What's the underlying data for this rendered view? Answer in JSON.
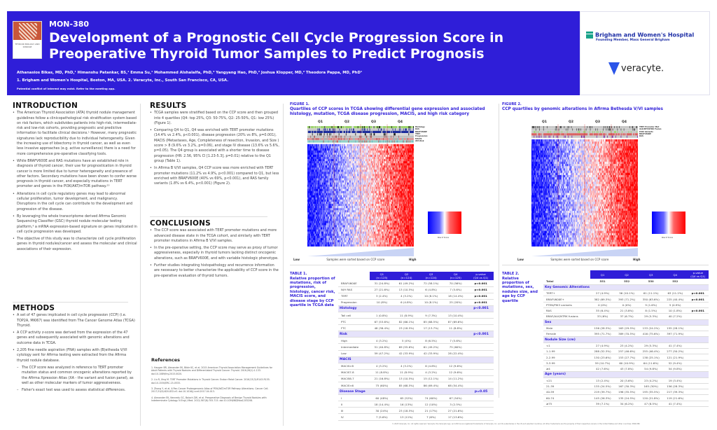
{
  "header": {
    "code": "MON-380",
    "title": "Development of a Prognostic Cell Cycle Progression Score in Preoperative Thyroid Tumor Samples to Predict Prognosis",
    "authors": "Athanasios Bikas, MD, PhD,¹ Himanshu Patankar, BS,¹ Emma Su,¹ Mohammed Alshalalfa, PhD,² Yangyang Hao, PhD,² Joshua Klopper, MD,² Theodora Pappa, MD, PhD¹",
    "affiliations": "1. Brigham and Women's Hospital, Boston, MA, USA. 2. Veracyte, Inc., South San Francisco, CA, USA.",
    "coi": "Potential conflict of interest may exist. Refer to the meeting app.",
    "cover_text": "THYROID BIOLOGY AND DISEASE",
    "brand_color": "#2f1ed8"
  },
  "logos": {
    "bwh_name": "Brigham and Women's Hospital",
    "bwh_sub": "Founding Member, Mass General Brigham",
    "veracyte": "veracyte."
  },
  "intro": {
    "heading": "INTRODUCTION",
    "items": [
      "The American Thyroid Association (ATA) thyroid nodule management guidelines follow a clinicopathological risk stratification system based on risk factors, which subdivides patients into high-risk, intermediate-risk and low-risk cohorts, providing prognostic and predictive information to facilitate clinical decisions.¹ However, many prognostic signatures lack reproducibility due to individual heterogeneity. Given the increasing use of lobectomy in thyroid cancer, as well as even less invasive approaches (e.g. active surveillance) there is a need for more comprehensive pre-operative classifying tools.",
      "While BRAFV600E and RAS mutations have an established role in diagnosis of thyroid cancer, their use for prognostication in thyroid cancer is more limited due to tumor heterogeneity and presence of other factors. Secondary mutations have been shown to confer worse prognosis in thyroid cancer, and especially mutations in TERT promoter and genes in the PI3K/AKT/mTOR pathway.²³",
      "Alterations in cell cycle regulatory genes may lead to abnormal cellular proliferation, tumor development, and malignancy. Disruptions in the cell cycle can contribute to the development and progression of the disease.",
      "By leveraging the whole transcriptome derived Afirma Genomic Sequencing Classifier (GSC) thyroid nodule molecular testing platform,⁴ a mRNA expression-based signature on genes implicated in cell cycle progression was developed.",
      "The objective of this study was to characterize cell cycle proliferation genes in thyroid nodules/cancer and assess the molecular and clinical associations of their expression."
    ]
  },
  "methods": {
    "heading": "METHODS",
    "items": [
      "A set of 47 genes implicated in cell cycle progression (CCP) (i.e. TOP2A, MKI67) was identified from The Cancer Genome Atlas (TCGA) Thyroid.",
      "A CCP activity z-score was derived from the expression of the 47 genes and subsequently associated with genomic alterations and outcome data in TCGA.",
      "2,205 fine needle aspiration (FNA) samples with (B)ethesda V/VI cytology sent for Afirma testing were extracted from the Afirma thyroid nodule database."
    ],
    "subitems": [
      "The CCP score was analyzed in reference to TERT promoter mutation status and common oncogenic alterations reported by the Afirma Xpression Atlas (XA - the variant and fusion panel), as well as other molecular markers of tumor aggressiveness.",
      "Fisher's exact test was used to assess statistical differences."
    ]
  },
  "results": {
    "heading": "RESULTS",
    "items": [
      "TCGA samples were stratified based on the CCP score and then grouped into 4 quartiles (Q4: top 25%, Q3: 50-75%, Q2: 25-50%, Q1: low 25%) (Figure 1).",
      "Comparing Q4 to Q1, Q4 was enriched with TERT promoter mutations (14.4% vs 2.4%, p<0.001), disease progression (20% vs 8%, p=0.001), MACIS (Metastases, Age, Completeness of resection, Invasion, and Size ) score > 8 (9.6% vs 3.2%, p=0.06), and stage IV disease (13.6% vs 5.6%, p=0.05). The Q4 group is associated with a shorter time to disease progression (HR: 2.56, 95% CI [1.23-5.3], p=0.01) relative to the Q1 group (Table 1).",
      "In Afirma B V/VI samples, Q4 CCP score was more enriched with TERT promoter mutations (11.2% vs 4.9%, p<0.001) compared to Q1, but less enriched with BRAFV600E (40% vs 69%, p<0.001), and RAS family variants (1.8% vs 6.4%, p<0.001) (Figure 2)."
    ]
  },
  "conclusions": {
    "heading": "CONCLUSIONS",
    "items": [
      "The CCP score was associated with TERT promoter mutations and more advanced disease state in the TCGA cohort, and similarly with TERT promoter mutations in Afirma B V/VI samples.",
      "In the pre-operative setting, the CCP score may serve as proxy of tumor aggressiveness, especially in thyroid tumors lacking distinct oncogenic alterations, such as BRAFV600E, and with variable histologic phenotype.",
      "Further studies integrating histopathology and recurrence information are necessary to better characterize the applicability of CCP score in the pre-operative evaluation of thyroid tumors."
    ]
  },
  "references": {
    "heading": "References",
    "items": [
      "1. Haugen BR, Alexander EK, Bible KC, et al. 2015 American Thyroid Association Management Guidelines for Adult Patients with Thyroid Nodules and Differentiated Thyroid Cancer. Thyroid. 2016;26(1):1-133. doi:10.1089/thy.2015.0020.",
      "2. Liu R, Xing M. TERT Promoter Mutations in Thyroid Cancer. Endocr Relat Cancer. 2016;23(3):R143-R155. doi:10.1530/ERC-15-0533.",
      "3. Zhang Y, et al. A Pan-Cancer Proteogenomic Atlas of PI3K/AKT/mTOR Pathway Alterations. Cancer Cell. 2017;31(6):820-832.e3. doi:10.1016/j.ccell.2017.04.013.",
      "4. Alexander EK, Kennedy GC, Baloch ZW, et al. Preoperative Diagnosis of Benign Thyroid Nodules with Indeterminate Cytology. N Engl J Med. 2012;367(8):705-715. doi:10.1056/NEJMoa1203208."
    ]
  },
  "figure1": {
    "label": "FIGURE 1.",
    "title": "Quartiles of CCP scores in TCGA showing differential gene expression and associated histology, mutation, TCGA disease progression, MACIS, and high risk category",
    "quartiles": [
      "Q1",
      "Q2",
      "Q3",
      "Q4"
    ],
    "tracks": [
      "Histology",
      "RAS",
      "BRAFV600E",
      "TERT",
      "Progression",
      "MACIS",
      "ATA Risk"
    ],
    "scale_label": "Row Z Score",
    "low": "Low",
    "high": "High",
    "sorted": "Samples were sorted based on CCP score"
  },
  "figure2": {
    "label": "FIGURE 2.",
    "title": "CCP quartiles by genomic alterations in Afirma Bethesda V/VI samples",
    "quartiles": [
      "Q1",
      "Q2",
      "Q3",
      "Q4"
    ],
    "tracks": [
      "TERT Promoter Mut",
      "ALK/RET/NTRK Fusion",
      "PI3K Variants",
      "BRAFV600E",
      "RAS"
    ],
    "scale_label": "Row Z Score",
    "low": "Low",
    "high": "High",
    "sorted": "Samples were sorted based on CCP score"
  },
  "table1": {
    "label": "TABLE 1.",
    "title": "Relative proportion of mutations, risk of progression, histology, cancer risk, MACIS score, and disease stage by CCP quartile in TCGA data",
    "headers": [
      "",
      "Q1\n(n=125)",
      "Q2\n(n=124)",
      "Q3\n(n=124)",
      "Q4\n(n=125)",
      "p-value\n(Q4 vs Q1)"
    ],
    "rows": [
      {
        "c": [
          "BRAFV600E",
          "31 (24.8%)",
          "61 (49.2%)",
          "72 (58.1%)",
          "70 (56%)"
        ],
        "p": "p<0.001"
      },
      {
        "c": [
          "N/H RAS",
          "27 (21.6%)",
          "13 (10.5%)",
          "6 (4.8%)",
          "7 (5.6%)"
        ],
        "p": "p<0.001"
      },
      {
        "c": [
          "TERT",
          "3 (2.4%)",
          "4 (3.2%)",
          "10 (8.1%)",
          "18 (14.4%)"
        ],
        "p": "p<0.001"
      },
      {
        "c": [
          "Progression",
          "10 (8%)",
          "6 (4.8%)",
          "10 (8.1%)",
          "25 (20%)"
        ],
        "p": "p<0.001"
      },
      {
        "s": "Histology",
        "p": "p<0.001"
      },
      {
        "c": [
          "Tall cell",
          "1 (0.8%)",
          "11 (8.9%)",
          "9 (7.3%)",
          "13 (10.4%)"
        ],
        "p": ""
      },
      {
        "c": [
          "PTC",
          "67 (53.6%)",
          "82 (66.1%)",
          "85 (68.5%)",
          "87 (69.6%)"
        ],
        "p": ""
      },
      {
        "c": [
          "FTC",
          "48 (38.4%)",
          "23 (18.5%)",
          "17 (13.7%)",
          "11 (8.8%)"
        ],
        "p": ""
      },
      {
        "s": "Risk",
        "p": "p<0.001"
      },
      {
        "c": [
          "High",
          "4 (3.2%)",
          "5 (4%)",
          "8 (6.5%)",
          "7 (5.6%)"
        ],
        "p": ""
      },
      {
        "c": [
          "Intermediate",
          "51 (40.8%)",
          "69 (55.6%)",
          "61 (49.2%)",
          "75 (60%)"
        ],
        "p": ""
      },
      {
        "c": [
          "Low",
          "59 (47.2%)",
          "42 (33.9%)",
          "42 (33.9%)",
          "28 (22.4%)"
        ],
        "p": ""
      },
      {
        "s": "MACIS",
        "p": ""
      },
      {
        "c": [
          "MACIS>8",
          "4 (3.2%)",
          "4 (3.2%)",
          "6 (4.8%)",
          "12 (9.6%)"
        ],
        "p": ""
      },
      {
        "c": [
          "MACIS7-8",
          "11 (8.8%)",
          "11 (8.9%)",
          "4 (3.2%)",
          "12 (9.6%)"
        ],
        "p": ""
      },
      {
        "c": [
          "MACIS6-7",
          "21 (16.8%)",
          "13 (10.5%)",
          "15 (12.1%)",
          "14 (11.2%)"
        ],
        "p": ""
      },
      {
        "c": [
          "MACIS<6",
          "75 (60%)",
          "85 (68.5%)",
          "86 (69.4%)",
          "68 (54.4%)"
        ],
        "p": ""
      },
      {
        "s": "Disease Stage",
        "p": "p=0.05"
      },
      {
        "c": [
          "I",
          "60 (48%)",
          "65 (52%)",
          "74 (60%)",
          "67 (54%)"
        ],
        "p": ""
      },
      {
        "c": [
          "II",
          "18 (14.4%)",
          "16 (13%)",
          "12 (10%)",
          "3 (2.5%)"
        ],
        "p": ""
      },
      {
        "c": [
          "III",
          "30 (24%)",
          "23 (18.5%)",
          "21 (17%)",
          "27 (21.6%)"
        ],
        "p": ""
      },
      {
        "c": [
          "IV",
          "7 (5.6%)",
          "13 (11%)",
          "7 (6%)",
          "17 (13.6%)"
        ],
        "p": ""
      }
    ]
  },
  "table2": {
    "label": "TABLE 2.",
    "title": "Relative proportion of mutations, sex, nodules size, and age by CCP quartile",
    "headers": [
      "",
      "Q1",
      "Q2",
      "Q3",
      "Q4",
      "p-value\n(Q4 vs Q1)"
    ],
    "rows": [
      {
        "c": [
          "Total",
          "551",
          "552",
          "550",
          "552"
        ],
        "p": "",
        "bold": true
      },
      {
        "s": "Key Genomic Alterations",
        "p": ""
      },
      {
        "c": [
          "TERT+",
          "27 (4.9%)",
          "56 (10.1%)",
          "61 (11.1%)",
          "63 (11.2%)"
        ],
        "p": "p<0.001"
      },
      {
        "c": [
          "BRAFV600E+",
          "382 (69.3%)",
          "393 (71.2%)",
          "350 (63.6%)",
          "225 (40.4%)"
        ],
        "p": "p<0.001"
      },
      {
        "c": [
          "PTEN/PIK3 variants",
          "0 (0%)",
          "0 (0%)",
          "9 (1.6%)",
          "5 (0.9%)"
        ],
        "p": ""
      },
      {
        "c": [
          "RAS",
          "35 (6.4%)",
          "21 (3.8%)",
          "8 (1.5%)",
          "10 (1.8%)"
        ],
        "p": "p<0.001"
      },
      {
        "c": [
          "BRAF/ALK/NTRK fusions",
          "33 (6%)",
          "37 (6.7%)",
          "29 (5.3%)",
          "40 (7.2%)"
        ],
        "p": ""
      },
      {
        "s": "Sex",
        "p": ""
      },
      {
        "c": [
          "Male",
          "156 (28.3%)",
          "163 (29.5%)",
          "133 (24.2%)",
          "155 (28.1%)"
        ],
        "p": ""
      },
      {
        "c": [
          "Female",
          "395 (71.7%)",
          "389 (70.5%)",
          "416 (75.6%)",
          "397 (71.9%)"
        ],
        "p": ""
      },
      {
        "s": "Nodule Size (cm)",
        "p": ""
      },
      {
        "c": [
          "<1",
          "27 (4.9%)",
          "23 (4.2%)",
          "29 (5.3%)",
          "41 (7.4%)"
        ],
        "p": ""
      },
      {
        "c": [
          "1-1.99",
          "288 (52.3%)",
          "257 (46.6%)",
          "255 (46.4%)",
          "277 (50.2%)"
        ],
        "p": ""
      },
      {
        "c": [
          "2-2.99",
          "130 (23.6%)",
          "153 (27.7%)",
          "138 (25.1%)",
          "121 (21.9%)"
        ],
        "p": ""
      },
      {
        "c": [
          "3-3.99",
          "59 (10.7%)",
          "60 (10.9%)",
          "64 (11.6%)",
          "52 (9.4%)"
        ],
        "p": ""
      },
      {
        "c": [
          "≥4",
          "42 (7.6%)",
          "43 (7.8%)",
          "54 (9.8%)",
          "54 (9.8%)"
        ],
        "p": ""
      },
      {
        "s": "Age (years)",
        "p": ""
      },
      {
        "c": [
          "<21",
          "13 (2.4%)",
          "20 (3.6%)",
          "23 (4.2%)",
          "19 (3.4%)"
        ],
        "p": ""
      },
      {
        "c": [
          "21-39",
          "135 (24.5%)",
          "167 (30.3%)",
          "165 (30%)",
          "156 (28.3%)"
        ],
        "p": ""
      },
      {
        "c": [
          "40-59",
          "219 (39.7%)",
          "196 (35.5%)",
          "195 (35.5%)",
          "217 (39.3%)"
        ],
        "p": ""
      },
      {
        "c": [
          "60-74",
          "145 (26.3%)",
          "135 (24.5%)",
          "120 (21.8%)",
          "119 (21.6%)"
        ],
        "p": ""
      },
      {
        "c": [
          "≥75",
          "39 (7.1%)",
          "34 (6.2%)",
          "47 (8.5%)",
          "41 (7.4%)"
        ],
        "p": ""
      }
    ]
  },
  "footer": "© 2025 Veracyte, Inc. All rights reserved. Veracyte, the Veracyte logo, and Afirma are registered trademarks of Veracyte, Inc. and its subsidiaries in the US and selected countries. All other trademarks are the property of their respective owners in the United States and other countries. MON-380"
}
